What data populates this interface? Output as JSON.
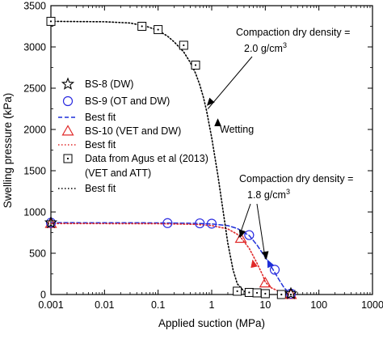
{
  "chart_data": {
    "type": "scatter",
    "xlabel": "Applied suction (MPa)",
    "ylabel": "Swelling pressure (kPa)",
    "xscale": "log",
    "xlim": [
      0.001,
      1000
    ],
    "ylim": [
      0,
      3500
    ],
    "xticks": [
      0.001,
      0.01,
      0.1,
      1,
      10,
      100,
      1000
    ],
    "xtick_labels": [
      "0.001",
      "0.01",
      "0.1",
      "1",
      "10",
      "100",
      "1000"
    ],
    "yticks": [
      0,
      500,
      1000,
      1500,
      2000,
      2500,
      3000,
      3500
    ],
    "ytick_labels": [
      "0",
      "500",
      "1000",
      "1500",
      "2000",
      "2500",
      "3000",
      "3500"
    ],
    "grid": false,
    "legend_position": "left",
    "series": [
      {
        "name": "BS-8 (DW)",
        "marker": "star",
        "color": "#000000",
        "points": [
          [
            0.001,
            870
          ],
          [
            30,
            10
          ]
        ]
      },
      {
        "name": "BS-9 (OT and DW)",
        "marker": "circle",
        "color": "#2a2ae0",
        "points": [
          [
            0.001,
            870
          ],
          [
            0.15,
            865
          ],
          [
            0.6,
            862
          ],
          [
            1.0,
            858
          ],
          [
            5,
            720
          ],
          [
            15,
            300
          ],
          [
            30,
            10
          ]
        ]
      },
      {
        "name": "Best fit",
        "line": "dashed",
        "color": "#1d2ed8",
        "points": [
          [
            0.001,
            870
          ],
          [
            0.1,
            868
          ],
          [
            0.5,
            862
          ],
          [
            1,
            855
          ],
          [
            2,
            835
          ],
          [
            3,
            800
          ],
          [
            5,
            715
          ],
          [
            7,
            600
          ],
          [
            10,
            450
          ],
          [
            14,
            300
          ],
          [
            18,
            180
          ],
          [
            22,
            90
          ],
          [
            27,
            25
          ],
          [
            30,
            0
          ]
        ]
      },
      {
        "name": "BS-10 (VET and DW)",
        "marker": "triangle",
        "color": "#e02a2a",
        "points": [
          [
            0.001,
            860
          ],
          [
            3.5,
            680
          ],
          [
            10,
            140
          ],
          [
            30,
            0
          ]
        ]
      },
      {
        "name": "Best fit",
        "line": "dotted",
        "color": "#e02a2a",
        "points": [
          [
            0.001,
            860
          ],
          [
            0.1,
            858
          ],
          [
            0.5,
            850
          ],
          [
            1,
            835
          ],
          [
            2,
            795
          ],
          [
            3,
            730
          ],
          [
            3.5,
            690
          ],
          [
            5,
            560
          ],
          [
            7,
            380
          ],
          [
            9,
            230
          ],
          [
            10,
            150
          ],
          [
            13,
            80
          ],
          [
            20,
            25
          ],
          [
            30,
            0
          ]
        ]
      },
      {
        "name": "Data from Agus et al (2013)\n(VET and ATT)",
        "marker": "dotted-square",
        "color": "#000000",
        "points": [
          [
            0.001,
            3310
          ],
          [
            0.05,
            3250
          ],
          [
            0.1,
            3210
          ],
          [
            0.3,
            3020
          ],
          [
            0.5,
            2780
          ],
          [
            3,
            40
          ],
          [
            5,
            25
          ],
          [
            7,
            20
          ],
          [
            10,
            10
          ],
          [
            20,
            0
          ],
          [
            30,
            0
          ]
        ]
      },
      {
        "name": "Best fit",
        "line": "dotted",
        "color": "#000000",
        "points": [
          [
            0.001,
            3310
          ],
          [
            0.01,
            3305
          ],
          [
            0.03,
            3290
          ],
          [
            0.06,
            3250
          ],
          [
            0.1,
            3200
          ],
          [
            0.15,
            3130
          ],
          [
            0.2,
            3060
          ],
          [
            0.3,
            2940
          ],
          [
            0.4,
            2810
          ],
          [
            0.5,
            2680
          ],
          [
            0.6,
            2540
          ],
          [
            0.7,
            2390
          ],
          [
            0.8,
            2230
          ],
          [
            1.0,
            1900
          ],
          [
            1.3,
            1450
          ],
          [
            1.6,
            1050
          ],
          [
            2,
            620
          ],
          [
            2.5,
            300
          ],
          [
            3,
            130
          ],
          [
            4,
            40
          ],
          [
            6,
            10
          ],
          [
            10,
            0
          ]
        ]
      }
    ],
    "annotations": [
      {
        "text": "Compaction dry density =",
        "line2": "2.0 g/cm",
        "sup": "3"
      },
      {
        "text": "Wetting"
      },
      {
        "text": "Compaction dry density =",
        "line2": "1.8 g/cm",
        "sup": "3"
      }
    ]
  }
}
